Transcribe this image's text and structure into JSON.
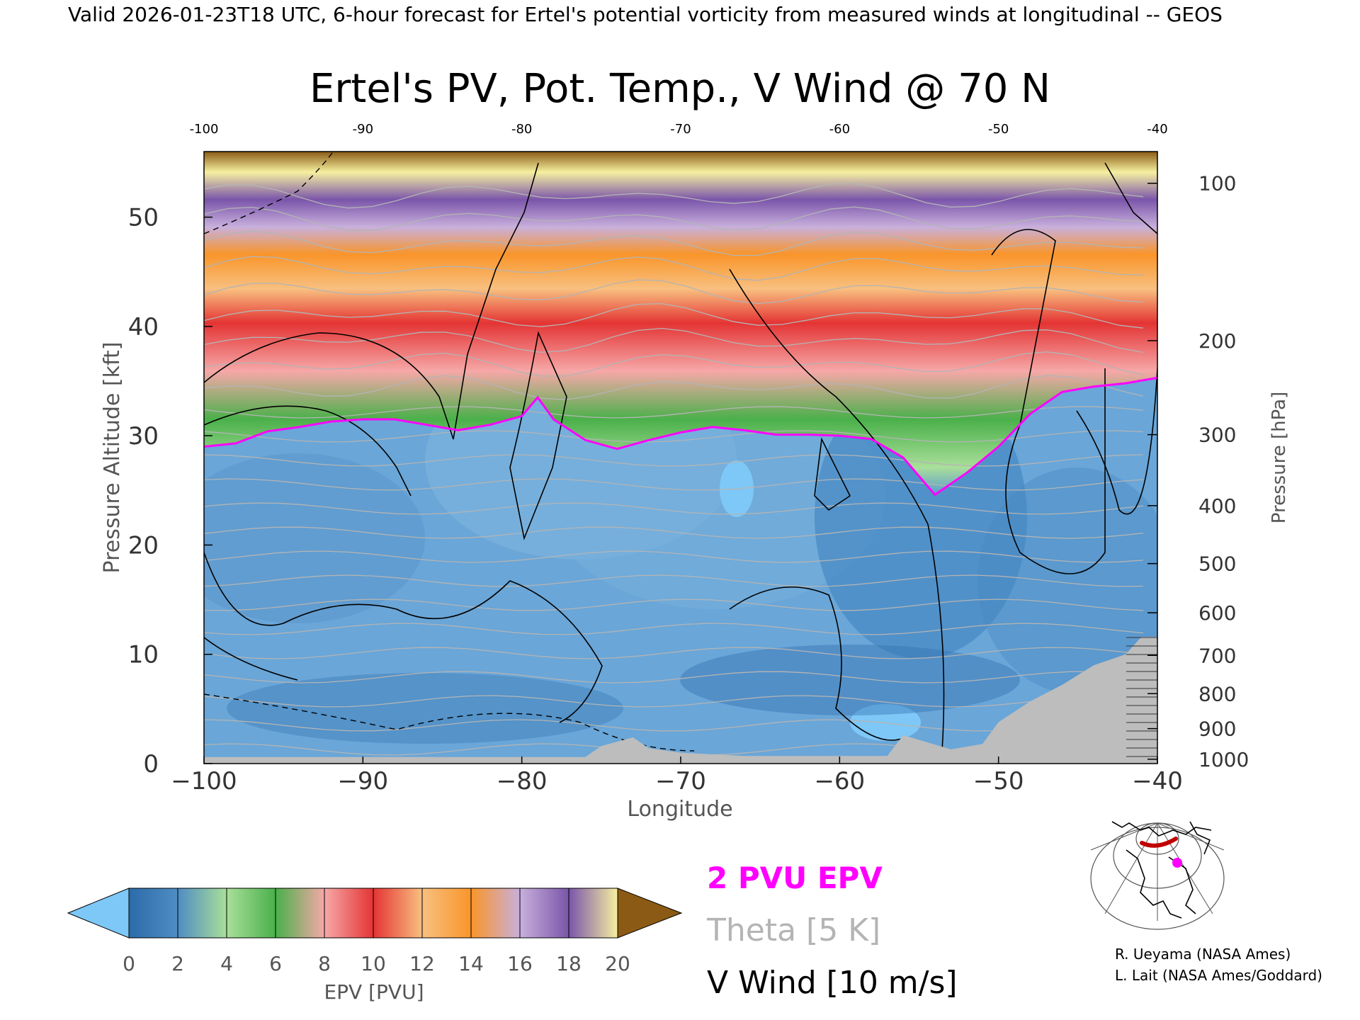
{
  "header": {
    "valid_line": "Valid 2026-01-23T18 UTC, 6-hour forecast for Ertel's potential vorticity from measured winds at longitudinal -- GEOS",
    "title": "Ertel's PV, Pot. Temp., V Wind @ 70 N"
  },
  "chart_data": {
    "type": "heatmap",
    "title": "Ertel's PV, Pot. Temp., V Wind @ 70 N",
    "xlabel": "Longitude",
    "ylabel_left": "Pressure Altitude [kft]",
    "ylabel_right": "Pressure [hPa]",
    "xlim": [
      -100,
      -40
    ],
    "ylim": [
      0,
      56
    ],
    "x_ticks": [
      "-100",
      "-90",
      "-80",
      "-70",
      "-60",
      "-50",
      "-40"
    ],
    "x_ticks_bottom": [
      "−100",
      "−90",
      "−80",
      "−70",
      "−60",
      "−50",
      "−40"
    ],
    "y_ticks": [
      0,
      10,
      20,
      30,
      40,
      50
    ],
    "pressure_ticks": [
      {
        "label": "100",
        "kft": 53.1
      },
      {
        "label": "200",
        "kft": 38.7
      },
      {
        "label": "300",
        "kft": 30.1
      },
      {
        "label": "400",
        "kft": 23.6
      },
      {
        "label": "500",
        "kft": 18.3
      },
      {
        "label": "600",
        "kft": 13.8
      },
      {
        "label": "700",
        "kft": 9.9
      },
      {
        "label": "800",
        "kft": 6.4
      },
      {
        "label": "900",
        "kft": 3.2
      },
      {
        "label": "1000",
        "kft": 0.4
      }
    ],
    "tropopause_2pvu_kft": [
      [
        -100,
        29
      ],
      [
        -98,
        29.3
      ],
      [
        -96,
        30.4
      ],
      [
        -94,
        30.8
      ],
      [
        -92,
        31.3
      ],
      [
        -90,
        31.5
      ],
      [
        -88,
        31.5
      ],
      [
        -86,
        31.0
      ],
      [
        -84,
        30.5
      ],
      [
        -82,
        31.0
      ],
      [
        -80,
        31.8
      ],
      [
        -79,
        33.5
      ],
      [
        -78,
        31.5
      ],
      [
        -76,
        29.6
      ],
      [
        -74,
        28.8
      ],
      [
        -72,
        29.6
      ],
      [
        -70,
        30.3
      ],
      [
        -68,
        30.8
      ],
      [
        -66,
        30.5
      ],
      [
        -64,
        30.1
      ],
      [
        -62,
        30.1
      ],
      [
        -60,
        30.0
      ],
      [
        -58,
        29.7
      ],
      [
        -56,
        28.0
      ],
      [
        -54,
        24.6
      ],
      [
        -52,
        26.6
      ],
      [
        -50,
        29.0
      ],
      [
        -48,
        32.0
      ],
      [
        -46,
        34.0
      ],
      [
        -44,
        34.5
      ],
      [
        -42,
        34.8
      ],
      [
        -40,
        35.3
      ]
    ],
    "colorbar": {
      "label": "EPV [PVU]",
      "ticks": [
        "0",
        "2",
        "4",
        "6",
        "8",
        "10",
        "12",
        "14",
        "16",
        "18",
        "20"
      ],
      "colors": [
        "#2b6ba8",
        "#4f8dc4",
        "#a9df9a",
        "#4ab04a",
        "#f6a8a8",
        "#e43434",
        "#f8c080",
        "#f9952a",
        "#c8b0dc",
        "#7a55aa",
        "#f6f0a0",
        "#8b5a14"
      ],
      "under_color": "#7ec8f7",
      "over_color": "#8b5a14"
    },
    "legend": {
      "epv": "2 PVU EPV",
      "theta": "Theta [5 K]",
      "wind": "V Wind [10 m/s]",
      "epv_color": "#ff00ff",
      "theta_color": "#b4b4b4",
      "wind_color": "#000000"
    }
  },
  "credits": {
    "line1": "R. Ueyama (NASA Ames)",
    "line2": "L. Lait (NASA Ames/Goddard)"
  }
}
